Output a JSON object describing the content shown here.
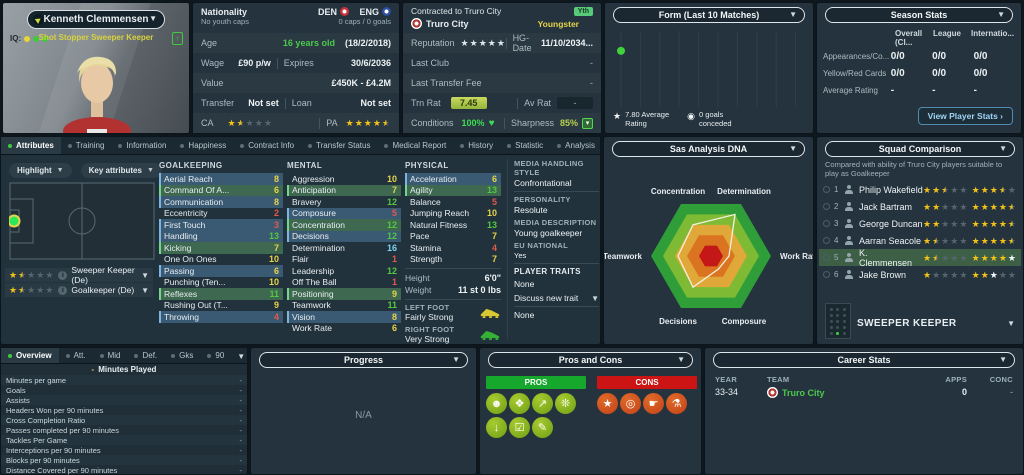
{
  "player_card": {
    "name": "Kenneth Clemmensen",
    "iq_label": "IQ:",
    "iq_dots": [
      "#e8d434",
      "#3fc93c",
      "#3fc93c"
    ],
    "familiarity": "Shot Stopper  Sweeper Keeper",
    "dev_arrow": "↑"
  },
  "nationality_panel": {
    "label": "Nationality",
    "youth_caps": "No youth caps",
    "nation_primary": "DEN",
    "nation_secondary": "ENG",
    "caps": "0 caps / 0 goals",
    "age_label": "Age",
    "age": "16 years old",
    "dob": "(18/2/2018)",
    "wage_label": "Wage",
    "wage": "£90 p/w",
    "expires_label": "Expires",
    "expires": "30/6/2036",
    "value_label": "Value",
    "value": "£450K - £4.2M",
    "transfer_label": "Transfer",
    "transfer": "Not set",
    "loan_label": "Loan",
    "loan": "Not set",
    "ca_label": "CA",
    "ca_stars": [
      "full",
      "half",
      "empty",
      "empty",
      "empty"
    ],
    "pa_label": "PA",
    "pa_stars": [
      "full",
      "full",
      "full",
      "full",
      "half"
    ]
  },
  "contract_panel": {
    "contracted": "Contracted to Truro City",
    "yth_badge": "Yth",
    "club": "Truro City",
    "status": "Youngster",
    "reputation_label": "Reputation",
    "reputation_stars": [
      "full",
      "full",
      "full",
      "full",
      "full"
    ],
    "hg_label": "HG-Date",
    "hg_date": "11/10/2034...",
    "last_club_label": "Last Club",
    "last_club": "-",
    "last_fee_label": "Last Transfer Fee",
    "last_fee": "-",
    "trn_label": "Trn Rat",
    "trn_rating": "7.45",
    "avrat_label": "Av Rat",
    "av_rating": "-",
    "cond_label": "Conditions",
    "condition": "100%",
    "sharp_label": "Sharpness",
    "sharpness": "85%"
  },
  "form_panel": {
    "title": "Form (Last 10 Matches)",
    "avg_line1": "7.80 Average",
    "avg_line2": "Rating",
    "conceded_line1": "0 goals",
    "conceded_line2": "conceded",
    "chart": {
      "type": "scatter",
      "matches": 10,
      "points": [
        {
          "x": 1,
          "rating": 7.8
        }
      ],
      "ymin": 0,
      "ymax": 10
    }
  },
  "season_stats": {
    "title": "Season Stats",
    "columns": [
      "Overall (Cl...",
      "League",
      "Internatio..."
    ],
    "rows": [
      {
        "label": "Appearances/Co...",
        "values": [
          "0/0",
          "0/0",
          "0/0"
        ]
      },
      {
        "label": "Yellow/Red Cards",
        "values": [
          "0/0",
          "0/0",
          "0/0"
        ]
      },
      {
        "label": "Average Rating",
        "values": [
          "-",
          "-",
          "-"
        ]
      }
    ],
    "button": "View Player Stats ›"
  },
  "main_tabs": {
    "active": 0,
    "items": [
      "Attributes",
      "Training",
      "Information",
      "Happiness",
      "Contract Info",
      "Transfer Status",
      "Medical Report",
      "History",
      "Statistic",
      "Analysis"
    ]
  },
  "filters": {
    "highlight": "Highlight",
    "key_attributes": "Key attributes"
  },
  "roles": [
    {
      "stars": [
        "full",
        "half",
        "empty",
        "empty",
        "empty"
      ],
      "name": "Sweeper Keeper (De)"
    },
    {
      "stars": [
        "full",
        "half",
        "empty",
        "empty",
        "empty"
      ],
      "name": "Goalkeeper (De)"
    }
  ],
  "attributes": {
    "columns": [
      {
        "title": "GOALKEEPING",
        "items": [
          {
            "label": "Aerial Reach",
            "value": 8,
            "color": "yellow",
            "hl": "blue"
          },
          {
            "label": "Command Of A...",
            "value": 6,
            "color": "yellow",
            "hl": "green"
          },
          {
            "label": "Communication",
            "value": 8,
            "color": "yellow",
            "hl": "blue"
          },
          {
            "label": "Eccentricity",
            "value": 2,
            "color": "red",
            "hl": "none"
          },
          {
            "label": "First Touch",
            "value": 3,
            "color": "red",
            "hl": "blue"
          },
          {
            "label": "Handling",
            "value": 13,
            "color": "green",
            "hl": "blue"
          },
          {
            "label": "Kicking",
            "value": 7,
            "color": "yellow",
            "hl": "green"
          },
          {
            "label": "One On Ones",
            "value": 10,
            "color": "yellow",
            "hl": "none"
          },
          {
            "label": "Passing",
            "value": 6,
            "color": "yellow",
            "hl": "blue"
          },
          {
            "label": "Punching (Ten...",
            "value": 10,
            "color": "yellow",
            "hl": "none"
          },
          {
            "label": "Reflexes",
            "value": 11,
            "color": "green",
            "hl": "green"
          },
          {
            "label": "Rushing Out (T...",
            "value": 9,
            "color": "yellow",
            "hl": "none"
          },
          {
            "label": "Throwing",
            "value": 4,
            "color": "red",
            "hl": "blue"
          }
        ]
      },
      {
        "title": "MENTAL",
        "items": [
          {
            "label": "Aggression",
            "value": 10,
            "color": "yellow",
            "hl": "none"
          },
          {
            "label": "Anticipation",
            "value": 7,
            "color": "yellow",
            "hl": "green"
          },
          {
            "label": "Bravery",
            "value": 12,
            "color": "green",
            "hl": "none"
          },
          {
            "label": "Composure",
            "value": 5,
            "color": "red",
            "hl": "blue"
          },
          {
            "label": "Concentration",
            "value": 12,
            "color": "green",
            "hl": "green"
          },
          {
            "label": "Decisions",
            "value": 12,
            "color": "green",
            "hl": "blue"
          },
          {
            "label": "Determination",
            "value": 16,
            "color": "blue",
            "hl": "none"
          },
          {
            "label": "Flair",
            "value": 1,
            "color": "red",
            "hl": "none"
          },
          {
            "label": "Leadership",
            "value": 12,
            "color": "green",
            "hl": "none"
          },
          {
            "label": "Off The Ball",
            "value": 1,
            "color": "red",
            "hl": "none"
          },
          {
            "label": "Positioning",
            "value": 9,
            "color": "yellow",
            "hl": "green"
          },
          {
            "label": "Teamwork",
            "value": 11,
            "color": "green",
            "hl": "none"
          },
          {
            "label": "Vision",
            "value": 8,
            "color": "yellow",
            "hl": "blue"
          },
          {
            "label": "Work Rate",
            "value": 6,
            "color": "yellow",
            "hl": "none"
          }
        ]
      },
      {
        "title": "PHYSICAL",
        "items": [
          {
            "label": "Acceleration",
            "value": 6,
            "color": "yellow",
            "hl": "blue"
          },
          {
            "label": "Agility",
            "value": 13,
            "color": "green",
            "hl": "green"
          },
          {
            "label": "Balance",
            "value": 5,
            "color": "red",
            "hl": "none"
          },
          {
            "label": "Jumping Reach",
            "value": 10,
            "color": "yellow",
            "hl": "none"
          },
          {
            "label": "Natural Fitness",
            "value": 13,
            "color": "green",
            "hl": "none"
          },
          {
            "label": "Pace",
            "value": 7,
            "color": "yellow",
            "hl": "none"
          },
          {
            "label": "Stamina",
            "value": 4,
            "color": "red",
            "hl": "none"
          },
          {
            "label": "Strength",
            "value": 7,
            "color": "yellow",
            "hl": "none"
          }
        ]
      }
    ]
  },
  "physique": {
    "height_label": "Height",
    "height": "6'0\"",
    "weight_label": "Weight",
    "weight": "11 st 0 lbs",
    "left_foot_label": "LEFT FOOT",
    "left_foot": "Fairly Strong",
    "right_foot_label": "RIGHT FOOT",
    "right_foot": "Very Strong"
  },
  "media": {
    "handling_label": "MEDIA HANDLING STYLE",
    "handling": "Confrontational",
    "personality_label": "PERSONALITY",
    "personality": "Resolute",
    "description_label": "MEDIA DESCRIPTION",
    "description": "Young goalkeeper",
    "eu_label": "EU NATIONAL",
    "eu": "Yes",
    "traits_label": "PLAYER TRAITS",
    "traits": "None",
    "discuss": "Discuss new trait",
    "discuss_value": "None"
  },
  "dna": {
    "title": "Sas Analysis DNA",
    "chart": {
      "type": "radar",
      "max": 20,
      "axes": [
        {
          "label": "Work Rate",
          "angle": 0,
          "value": 6
        },
        {
          "label": "Determination",
          "angle": 60,
          "value": 16
        },
        {
          "label": "Concentration",
          "angle": 120,
          "value": 12
        },
        {
          "label": "Teamwork",
          "angle": 180,
          "value": 11
        },
        {
          "label": "Decisions",
          "angle": 240,
          "value": 12
        },
        {
          "label": "Composure",
          "angle": 300,
          "value": 5
        }
      ],
      "ring_colors": [
        "#2f9e38",
        "#7fba35",
        "#e0a838",
        "#db7420",
        "#c41717"
      ]
    }
  },
  "squad": {
    "title": "Squad Comparison",
    "description": "Compared with ability of Truro City players suitable to play as Goalkeeper",
    "rows": [
      {
        "rank": "1",
        "name": "Philip Wakefield",
        "ca": [
          "full",
          "full",
          "half",
          "empty",
          "empty"
        ],
        "pa": [
          "full",
          "full",
          "full",
          "half",
          "empty"
        ],
        "self": false
      },
      {
        "rank": "2",
        "name": "Jack Bartram",
        "ca": [
          "full",
          "full",
          "empty",
          "empty",
          "empty"
        ],
        "pa": [
          "full",
          "full",
          "full",
          "full",
          "half"
        ],
        "self": false
      },
      {
        "rank": "3",
        "name": "George Duncan",
        "ca": [
          "full",
          "full",
          "empty",
          "empty",
          "empty"
        ],
        "pa": [
          "full",
          "full",
          "full",
          "full",
          "half"
        ],
        "self": false
      },
      {
        "rank": "4",
        "name": "Aarran Seacole",
        "ca": [
          "full",
          "half",
          "empty",
          "empty",
          "empty"
        ],
        "pa": [
          "full",
          "full",
          "full",
          "full",
          "half"
        ],
        "self": false
      },
      {
        "rank": "5",
        "name": "K. Clemmensen",
        "ca": [
          "full",
          "half",
          "empty",
          "empty",
          "empty"
        ],
        "pa": [
          "full",
          "full",
          "full",
          "full",
          "white"
        ],
        "self": true
      },
      {
        "rank": "6",
        "name": "Jake Brown",
        "ca": [
          "full",
          "empty",
          "empty",
          "empty",
          "empty"
        ],
        "pa": [
          "full",
          "full",
          "white",
          "empty",
          "empty"
        ],
        "self": false
      }
    ],
    "role": "SWEEPER KEEPER"
  },
  "overview_panel": {
    "tabs": [
      "Overview",
      "Att.",
      "Mid",
      "Def.",
      "Gks",
      "90"
    ],
    "active": 0,
    "legend_dash": "-",
    "legend": "Minutes Played",
    "rows": [
      {
        "label": "Minutes per game",
        "value": "-"
      },
      {
        "label": "Goals",
        "value": "-"
      },
      {
        "label": "Assists",
        "value": "-"
      },
      {
        "label": "Headers Won per 90 minutes",
        "value": "-"
      },
      {
        "label": "Cross Completion Ratio",
        "value": "-"
      },
      {
        "label": "Passes completed per 90 minutes",
        "value": "-"
      },
      {
        "label": "Tackles Per Game",
        "value": "-"
      },
      {
        "label": "Interceptions per 90 minutes",
        "value": "-"
      },
      {
        "label": "Blocks per 90 minutes",
        "value": "-"
      },
      {
        "label": "Distance Covered per 90 minutes",
        "value": "-"
      }
    ]
  },
  "progress_panel": {
    "title": "Progress",
    "empty": "N/A"
  },
  "pros_cons": {
    "title": "Pros and Cons",
    "pros_label": "PROS",
    "cons_label": "CONS",
    "pros_icons": [
      {
        "name": "personality-icon",
        "glyph": "☻"
      },
      {
        "name": "goalkeeping-icon",
        "glyph": "❖"
      },
      {
        "name": "progress-up-icon",
        "glyph": "↗"
      },
      {
        "name": "movement-icon",
        "glyph": "❊"
      },
      {
        "name": "aerial-icon",
        "glyph": "↓"
      },
      {
        "name": "report-check-icon",
        "glyph": "☑"
      },
      {
        "name": "contract-note-icon",
        "glyph": "✎"
      }
    ],
    "cons_icons": [
      {
        "name": "star-icon",
        "glyph": "★"
      },
      {
        "name": "target-icon",
        "glyph": "◎"
      },
      {
        "name": "hand-card-icon",
        "glyph": "☛"
      },
      {
        "name": "experiment-icon",
        "glyph": "⚗"
      }
    ]
  },
  "career": {
    "title": "Career Stats",
    "columns": [
      "YEAR",
      "TEAM",
      "APPS",
      "CONC"
    ],
    "rows": [
      {
        "year": "33-34",
        "team": "Truro City",
        "apps": "0",
        "conc": "-"
      }
    ]
  }
}
